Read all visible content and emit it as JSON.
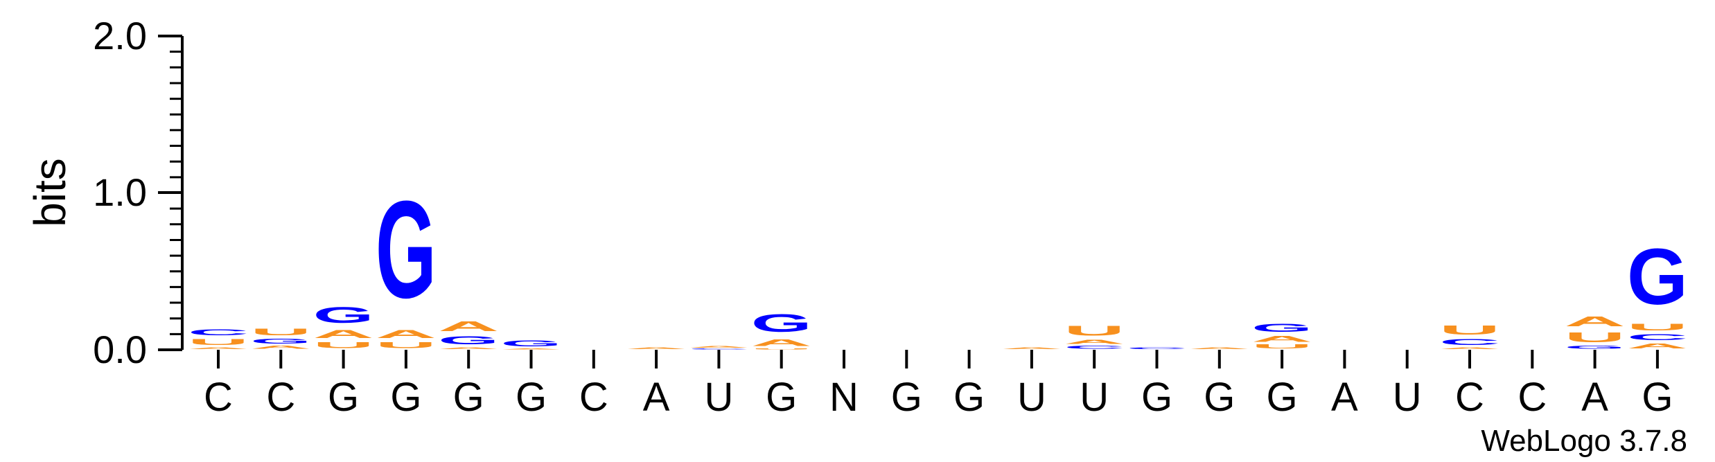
{
  "chart_data": {
    "type": "sequence-logo",
    "ylabel": "bits",
    "ylim": [
      0,
      2.0
    ],
    "yticks": [
      "0.0",
      "1.0",
      "2.0"
    ],
    "credit": "WebLogo 3.7.8",
    "colors": {
      "A": "#f7901e",
      "U": "#f7901e",
      "G": "#0000ff",
      "C": "#0000ff",
      "N": "#000000"
    },
    "positions": [
      {
        "label": "C",
        "stack": [
          {
            "base": "A",
            "bits": 0.02
          },
          {
            "base": "U",
            "bits": 0.06
          },
          {
            "base": "C",
            "bits": 0.06
          }
        ]
      },
      {
        "label": "C",
        "stack": [
          {
            "base": "A",
            "bits": 0.03
          },
          {
            "base": "G",
            "bits": 0.05
          },
          {
            "base": "U",
            "bits": 0.07
          }
        ]
      },
      {
        "label": "G",
        "stack": [
          {
            "base": "U",
            "bits": 0.06
          },
          {
            "base": "A",
            "bits": 0.08
          },
          {
            "base": "G",
            "bits": 0.16
          }
        ]
      },
      {
        "label": "G",
        "stack": [
          {
            "base": "U",
            "bits": 0.06
          },
          {
            "base": "A",
            "bits": 0.08
          },
          {
            "base": "G",
            "bits": 0.99
          }
        ]
      },
      {
        "label": "G",
        "stack": [
          {
            "base": "A",
            "bits": 0.02
          },
          {
            "base": "G",
            "bits": 0.08
          },
          {
            "base": "A",
            "bits": 0.1
          }
        ]
      },
      {
        "label": "G",
        "stack": [
          {
            "base": "A",
            "bits": 0.01
          },
          {
            "base": "G",
            "bits": 0.06
          }
        ]
      },
      {
        "label": "C",
        "stack": []
      },
      {
        "label": "A",
        "stack": [
          {
            "base": "A",
            "bits": 0.02
          }
        ]
      },
      {
        "label": "U",
        "stack": [
          {
            "base": "C",
            "bits": 0.01
          },
          {
            "base": "A",
            "bits": 0.02
          }
        ]
      },
      {
        "label": "G",
        "stack": [
          {
            "base": "U",
            "bits": 0.01
          },
          {
            "base": "A",
            "bits": 0.07
          },
          {
            "base": "G",
            "bits": 0.18
          }
        ]
      },
      {
        "label": "N",
        "stack": []
      },
      {
        "label": "G",
        "stack": []
      },
      {
        "label": "G",
        "stack": []
      },
      {
        "label": "U",
        "stack": [
          {
            "base": "A",
            "bits": 0.02
          }
        ]
      },
      {
        "label": "U",
        "stack": [
          {
            "base": "C",
            "bits": 0.03
          },
          {
            "base": "A",
            "bits": 0.04
          },
          {
            "base": "U",
            "bits": 0.1
          }
        ]
      },
      {
        "label": "G",
        "stack": [
          {
            "base": "C",
            "bits": 0.02
          }
        ]
      },
      {
        "label": "G",
        "stack": [
          {
            "base": "A",
            "bits": 0.02
          }
        ]
      },
      {
        "label": "G",
        "stack": [
          {
            "base": "U",
            "bits": 0.04
          },
          {
            "base": "A",
            "bits": 0.06
          },
          {
            "base": "G",
            "bits": 0.08
          }
        ]
      },
      {
        "label": "A",
        "stack": []
      },
      {
        "label": "U",
        "stack": []
      },
      {
        "label": "C",
        "stack": [
          {
            "base": "A",
            "bits": 0.02
          },
          {
            "base": "C",
            "bits": 0.06
          },
          {
            "base": "U",
            "bits": 0.09
          }
        ]
      },
      {
        "label": "C",
        "stack": []
      },
      {
        "label": "A",
        "stack": [
          {
            "base": "G",
            "bits": 0.03
          },
          {
            "base": "U",
            "bits": 0.1
          },
          {
            "base": "A",
            "bits": 0.1
          }
        ]
      },
      {
        "label": "G",
        "stack": [
          {
            "base": "A",
            "bits": 0.05
          },
          {
            "base": "C",
            "bits": 0.06
          },
          {
            "base": "U",
            "bits": 0.07
          },
          {
            "base": "G",
            "bits": 0.57
          }
        ]
      }
    ]
  }
}
